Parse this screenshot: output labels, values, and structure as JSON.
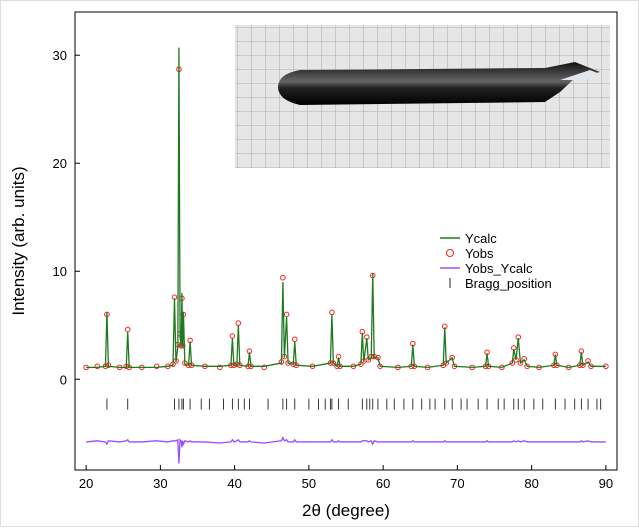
{
  "chart_data": {
    "type": "line",
    "xlabel": "2θ (degree)",
    "ylabel": "Intensity (arb. units)",
    "xlim": [
      18.5,
      91.5
    ],
    "ylim": [
      -8.4,
      34
    ],
    "xticks": [
      20,
      30,
      40,
      50,
      60,
      70,
      80,
      90
    ],
    "yticks": [
      0,
      10,
      20,
      30
    ],
    "legend": "center right",
    "series": [
      {
        "name": "Ycalc",
        "color": "#1f7a1f",
        "style": "line",
        "x": [
          20,
          21.5,
          22.6,
          22.8,
          23.0,
          24.5,
          25.4,
          25.6,
          25.8,
          27.5,
          29.5,
          31.0,
          31.7,
          31.9,
          32.1,
          32.35,
          32.5,
          32.65,
          32.8,
          32.9,
          33.0,
          33.1,
          33.3,
          33.8,
          34.0,
          34.2,
          36.0,
          38.0,
          39.5,
          39.7,
          39.9,
          40.3,
          40.5,
          40.7,
          41.8,
          42.0,
          42.2,
          44.0,
          46.3,
          46.5,
          46.7,
          47.0,
          47.2,
          47.9,
          48.1,
          48.3,
          50.5,
          52.9,
          53.1,
          53.3,
          53.8,
          54.0,
          54.2,
          56.0,
          57.0,
          57.2,
          57.4,
          57.8,
          58.0,
          58.4,
          58.6,
          58.8,
          59.3,
          59.6,
          62.0,
          63.8,
          64.0,
          64.2,
          66.0,
          68.1,
          68.3,
          68.5,
          69.3,
          69.6,
          72.0,
          73.8,
          74.0,
          74.2,
          76.0,
          77.4,
          77.6,
          77.9,
          78.2,
          78.5,
          79.0,
          79.4,
          81.0,
          83.0,
          83.2,
          83.4,
          85.0,
          86.5,
          86.7,
          86.9,
          87.6,
          88.0,
          90.0
        ],
        "values": [
          1.1,
          1.1,
          1.2,
          6.2,
          1.2,
          1.1,
          1.1,
          4.4,
          1.1,
          1.1,
          1.1,
          1.2,
          1.3,
          7.5,
          1.6,
          3,
          30.7,
          4,
          3,
          8,
          3,
          6.2,
          1.4,
          1.3,
          3.5,
          1.3,
          1.2,
          1.2,
          1.3,
          3.8,
          1.3,
          1.3,
          5.0,
          1.3,
          1.2,
          2.5,
          1.2,
          1.2,
          1.5,
          9.0,
          2,
          5.8,
          1.5,
          1.4,
          3.5,
          1.3,
          1.2,
          1.5,
          6.0,
          1.5,
          1.2,
          2,
          1.2,
          1.2,
          1.4,
          4.3,
          1.6,
          3.8,
          1.8,
          2,
          9.8,
          2,
          2,
          1.2,
          1.1,
          1.2,
          3.2,
          1.2,
          1.1,
          1.3,
          4.8,
          1.5,
          2,
          1.2,
          1.1,
          1.2,
          2.4,
          1.2,
          1.1,
          1.5,
          2.8,
          1.8,
          3.8,
          1.5,
          1.8,
          1.2,
          1.1,
          1.3,
          2.3,
          1.3,
          1.1,
          1.3,
          2.5,
          1.3,
          1.6,
          1.2,
          1.2
        ]
      },
      {
        "name": "Yobs",
        "color": "#ff2020",
        "style": "circle",
        "x": [
          20,
          21.5,
          22.6,
          22.8,
          23.0,
          24.5,
          25.4,
          25.6,
          25.8,
          27.5,
          29.5,
          31.0,
          31.7,
          31.9,
          32.1,
          32.35,
          32.5,
          32.65,
          32.8,
          32.9,
          33.0,
          33.1,
          33.3,
          33.8,
          34.0,
          34.2,
          36.0,
          38.0,
          39.5,
          39.7,
          39.9,
          40.3,
          40.5,
          40.7,
          41.8,
          42.0,
          42.2,
          44.0,
          46.3,
          46.5,
          46.7,
          47.0,
          47.2,
          47.9,
          48.1,
          48.3,
          50.5,
          52.9,
          53.1,
          53.3,
          53.8,
          54.0,
          54.2,
          56.0,
          57.0,
          57.2,
          57.4,
          57.8,
          58.0,
          58.4,
          58.6,
          58.8,
          59.3,
          59.6,
          62.0,
          63.8,
          64.0,
          64.2,
          66.0,
          68.1,
          68.3,
          68.5,
          69.3,
          69.6,
          72.0,
          73.8,
          74.0,
          74.2,
          76.0,
          77.4,
          77.6,
          77.9,
          78.2,
          78.5,
          79.0,
          79.4,
          81.0,
          83.0,
          83.2,
          83.4,
          85.0,
          86.5,
          86.7,
          86.9,
          87.6,
          88.0,
          90.0
        ],
        "values": [
          1.1,
          1.2,
          1.2,
          6.0,
          1.3,
          1.1,
          1.2,
          4.6,
          1.1,
          1.1,
          1.2,
          1.2,
          1.4,
          7.6,
          1.7,
          3.2,
          28.7,
          4.2,
          3.1,
          7.5,
          3.1,
          6.0,
          1.5,
          1.3,
          3.6,
          1.3,
          1.2,
          1.1,
          1.3,
          4.0,
          1.3,
          1.4,
          5.2,
          1.3,
          1.2,
          2.6,
          1.2,
          1.1,
          1.6,
          9.4,
          2.1,
          6.0,
          1.5,
          1.4,
          3.7,
          1.3,
          1.2,
          1.5,
          6.2,
          1.5,
          1.2,
          2.1,
          1.2,
          1.2,
          1.4,
          4.4,
          1.7,
          3.9,
          1.8,
          2.1,
          9.6,
          2.1,
          2.0,
          1.2,
          1.1,
          1.2,
          3.3,
          1.2,
          1.1,
          1.3,
          4.9,
          1.5,
          2.0,
          1.2,
          1.1,
          1.2,
          2.5,
          1.2,
          1.1,
          1.5,
          2.9,
          1.8,
          3.9,
          1.5,
          1.9,
          1.2,
          1.1,
          1.3,
          2.3,
          1.3,
          1.1,
          1.3,
          2.6,
          1.3,
          1.7,
          1.2,
          1.2
        ]
      },
      {
        "name": "Yobs_Ycalc",
        "color": "#9b4dff",
        "style": "line",
        "x": [
          20,
          21.5,
          22.6,
          22.8,
          23.0,
          24.5,
          25.4,
          25.6,
          25.8,
          27.5,
          29.5,
          31.0,
          31.7,
          31.9,
          32.1,
          32.35,
          32.5,
          32.65,
          32.8,
          32.9,
          33.0,
          33.1,
          33.3,
          33.8,
          34.0,
          34.2,
          36.0,
          38.0,
          39.5,
          39.7,
          39.9,
          40.3,
          40.5,
          40.7,
          41.8,
          42.0,
          42.2,
          44.0,
          46.3,
          46.5,
          46.7,
          47.0,
          47.2,
          47.9,
          48.1,
          48.3,
          50.5,
          52.9,
          53.1,
          53.3,
          53.8,
          54.0,
          54.2,
          56.0,
          57.0,
          57.2,
          57.4,
          57.8,
          58.0,
          58.4,
          58.6,
          58.8,
          59.3,
          59.6,
          62.0,
          63.8,
          64.0,
          64.2,
          66.0,
          68.1,
          68.3,
          68.5,
          69.3,
          69.6,
          72.0,
          73.8,
          74.0,
          74.2,
          76.0,
          77.4,
          77.6,
          77.9,
          78.2,
          78.5,
          79.0,
          79.4,
          81.0,
          83.0,
          83.2,
          83.4,
          85.0,
          86.5,
          86.7,
          86.9,
          87.6,
          88.0,
          90.0
        ],
        "values": [
          -5.8,
          -5.7,
          -5.8,
          -6.0,
          -5.7,
          -5.8,
          -5.7,
          -5.6,
          -5.8,
          -5.8,
          -5.7,
          -5.8,
          -5.7,
          -5.7,
          -5.7,
          -5.6,
          -7.8,
          -5.6,
          -5.7,
          -6.3,
          -5.7,
          -6.0,
          -5.7,
          -5.8,
          -5.7,
          -5.8,
          -5.8,
          -5.9,
          -5.8,
          -5.6,
          -5.8,
          -5.7,
          -5.6,
          -5.8,
          -5.8,
          -5.7,
          -5.8,
          -5.9,
          -5.7,
          -5.4,
          -5.7,
          -5.6,
          -5.8,
          -5.8,
          -5.6,
          -5.8,
          -5.8,
          -5.8,
          -5.6,
          -5.8,
          -5.8,
          -5.7,
          -5.8,
          -5.8,
          -5.8,
          -5.7,
          -5.7,
          -5.7,
          -5.8,
          -5.7,
          -6.0,
          -5.7,
          -5.8,
          -5.8,
          -5.8,
          -5.8,
          -5.7,
          -5.8,
          -5.8,
          -5.8,
          -5.7,
          -5.8,
          -5.8,
          -5.8,
          -5.8,
          -5.8,
          -5.7,
          -5.8,
          -5.8,
          -5.8,
          -5.7,
          -5.8,
          -5.7,
          -5.8,
          -5.7,
          -5.8,
          -5.8,
          -5.8,
          -5.8,
          -5.8,
          -5.8,
          -5.8,
          -5.7,
          -5.8,
          -5.7,
          -5.8,
          -5.8
        ]
      },
      {
        "name": "Bragg_position",
        "color": "#222222",
        "style": "tick",
        "x": [
          22.8,
          25.6,
          31.9,
          32.5,
          32.9,
          33.1,
          34.0,
          35.5,
          36.6,
          38.5,
          39.7,
          40.5,
          41.3,
          42.0,
          44.5,
          46.5,
          47.0,
          48.1,
          50.0,
          51.3,
          52.2,
          52.9,
          53.1,
          54.0,
          55.3,
          57.2,
          57.8,
          58.2,
          58.6,
          59.3,
          60.5,
          61.5,
          62.8,
          64.0,
          65.2,
          66.3,
          67.0,
          68.3,
          69.3,
          70.5,
          71.3,
          72.8,
          74.0,
          75.5,
          76.3,
          77.6,
          78.2,
          79.0,
          80.3,
          81.5,
          83.2,
          84.5,
          85.8,
          86.7,
          87.6,
          88.8,
          89.3
        ],
        "values": [
          -2.3,
          -2.3,
          -2.3,
          -2.3,
          -2.3,
          -2.3,
          -2.3,
          -2.3,
          -2.3,
          -2.3,
          -2.3,
          -2.3,
          -2.3,
          -2.3,
          -2.3,
          -2.3,
          -2.3,
          -2.3,
          -2.3,
          -2.3,
          -2.3,
          -2.3,
          -2.3,
          -2.3,
          -2.3,
          -2.3,
          -2.3,
          -2.3,
          -2.3,
          -2.3,
          -2.3,
          -2.3,
          -2.3,
          -2.3,
          -2.3,
          -2.3,
          -2.3,
          -2.3,
          -2.3,
          -2.3,
          -2.3,
          -2.3,
          -2.3,
          -2.3,
          -2.3,
          -2.3,
          -2.3,
          -2.3,
          -2.3,
          -2.3,
          -2.3,
          -2.3,
          -2.3,
          -2.3,
          -2.3,
          -2.3,
          -2.3
        ]
      }
    ]
  }
}
